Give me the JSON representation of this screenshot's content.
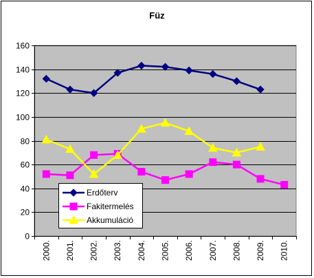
{
  "chart_data": {
    "type": "line",
    "title": "Füz",
    "xlabel": "",
    "ylabel": "",
    "categories": [
      "2000.",
      "2001.",
      "2002.",
      "2003.",
      "2004.",
      "2005.",
      "2006.",
      "2007.",
      "2008.",
      "2009.",
      "2010."
    ],
    "ylim": [
      0,
      160
    ],
    "yticks": [
      "0",
      "20",
      "40",
      "60",
      "80",
      "100",
      "120",
      "140",
      "160"
    ],
    "grid": true,
    "legend_position": "bottom-left",
    "series": [
      {
        "name": "Erdőterv",
        "color": "#000080",
        "marker": "diamond",
        "values": [
          132,
          123,
          120,
          137,
          143,
          142,
          139,
          136,
          130,
          123,
          null
        ]
      },
      {
        "name": "Fakitermelés",
        "color": "#FF00FF",
        "marker": "square",
        "values": [
          52,
          51,
          68,
          69,
          54,
          47,
          52,
          62,
          60,
          48,
          43
        ]
      },
      {
        "name": "Akkumuláció",
        "color": "#FFFF00",
        "marker": "triangle",
        "values": [
          81,
          73,
          52,
          68,
          90,
          95,
          88,
          74,
          70,
          75,
          null
        ]
      }
    ],
    "plot_background": "#C0C0C0"
  }
}
